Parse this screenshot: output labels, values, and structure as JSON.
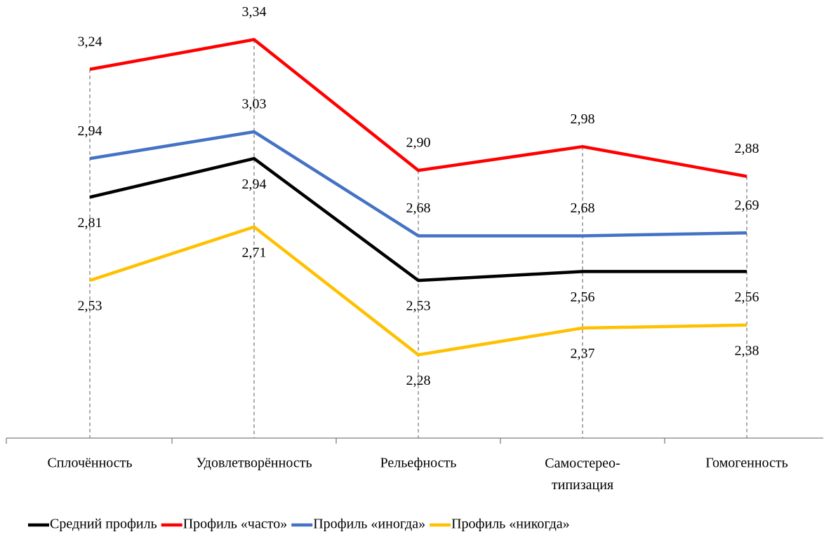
{
  "chart_data": {
    "type": "line",
    "categories": [
      "Сплочённость",
      "Удовлетворённость",
      "Рельефность",
      "Самостерео-\nтипизация",
      "Гомогенность"
    ],
    "series": [
      {
        "name": "Средний профиль",
        "color": "#000000",
        "values": [
          2.81,
          2.94,
          2.53,
          2.56,
          2.56
        ],
        "value_labels": [
          "2,81",
          "2,94",
          "2,53",
          "2,56",
          "2,56"
        ]
      },
      {
        "name": "Профиль «часто»",
        "color": "#ff0000",
        "values": [
          3.24,
          3.34,
          2.9,
          2.98,
          2.88
        ],
        "value_labels": [
          "3,24",
          "3,34",
          "2,90",
          "2,98",
          "2,88"
        ]
      },
      {
        "name": "Профиль «иногда»",
        "color": "#4472c4",
        "values": [
          2.94,
          3.03,
          2.68,
          2.68,
          2.69
        ],
        "value_labels": [
          "2,94",
          "3,03",
          "2,68",
          "2,68",
          "2,69"
        ]
      },
      {
        "name": "Профиль «никогда»",
        "color": "#ffc000",
        "values": [
          2.53,
          2.71,
          2.28,
          2.37,
          2.38
        ],
        "value_labels": [
          "2,53",
          "2,71",
          "2,28",
          "2,37",
          "2,38"
        ]
      }
    ],
    "ylim": [
      2,
      3.4
    ],
    "legend": "bottom"
  }
}
